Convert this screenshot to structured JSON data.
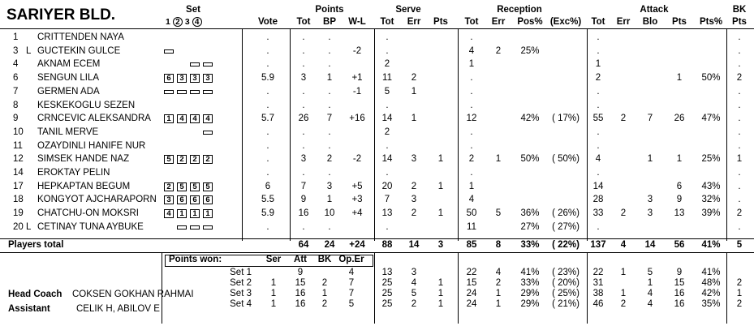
{
  "team": "SARIYER BLD.",
  "headers": {
    "set": "Set",
    "set_nums": [
      "1",
      "2",
      "3",
      "4"
    ],
    "vote": "Vote",
    "points": "Points",
    "serve": "Serve",
    "reception": "Reception",
    "attack": "Attack",
    "bk": "BK",
    "sub": {
      "p_tot": "Tot",
      "p_bp": "BP",
      "p_wl": "W-L",
      "s_tot": "Tot",
      "s_err": "Err",
      "s_pts": "Pts",
      "r_tot": "Tot",
      "r_err": "Err",
      "r_pos": "Pos%",
      "r_exc": "(Exc%)",
      "a_tot": "Tot",
      "a_err": "Err",
      "a_blo": "Blo",
      "a_pts": "Pts",
      "a_ptsp": "Pts%",
      "bk_pts": "Pts"
    }
  },
  "players": [
    {
      "num": "1",
      "role": "",
      "name": "CRITTENDEN NAYA",
      "sets": [],
      "vote": ".",
      "p_tot": ".",
      "p_bp": ".",
      "p_wl": "",
      "s_tot": ".",
      "s_err": "",
      "s_pts": "",
      "r_tot": ".",
      "r_err": "",
      "r_pos": "",
      "r_exc": "",
      "a_tot": ".",
      "a_err": "",
      "a_blo": "",
      "a_pts": "",
      "a_ptsp": "",
      "bk": "."
    },
    {
      "num": "3",
      "role": "L",
      "name": "GUCTEKIN GULCE",
      "sets": [
        "",
        "",
        "",
        ""
      ],
      "boxes": [
        0
      ],
      "vote": ".",
      "p_tot": ".",
      "p_bp": ".",
      "p_wl": "-2",
      "s_tot": ".",
      "s_err": "",
      "s_pts": "",
      "r_tot": "4",
      "r_err": "2",
      "r_pos": "25%",
      "r_exc": "",
      "a_tot": ".",
      "a_err": "",
      "a_blo": "",
      "a_pts": "",
      "a_ptsp": "",
      "bk": "."
    },
    {
      "num": "4",
      "role": "",
      "name": "AKNAM ECEM",
      "sets": [
        "",
        "",
        "",
        ""
      ],
      "boxes": [
        2,
        3
      ],
      "vote": ".",
      "p_tot": ".",
      "p_bp": ".",
      "p_wl": "",
      "s_tot": "2",
      "s_err": "",
      "s_pts": "",
      "r_tot": "1",
      "r_err": "",
      "r_pos": "",
      "r_exc": "",
      "a_tot": "1",
      "a_err": "",
      "a_blo": "",
      "a_pts": "",
      "a_ptsp": "",
      "bk": "."
    },
    {
      "num": "6",
      "role": "",
      "name": "SENGUN LILA",
      "sets": [
        "6",
        "3",
        "3",
        "3"
      ],
      "boxes": [
        0,
        1,
        2,
        3
      ],
      "vote": "5.9",
      "p_tot": "3",
      "p_bp": "1",
      "p_wl": "+1",
      "s_tot": "11",
      "s_err": "2",
      "s_pts": "",
      "r_tot": ".",
      "r_err": "",
      "r_pos": "",
      "r_exc": "",
      "a_tot": "2",
      "a_err": "",
      "a_blo": "",
      "a_pts": "1",
      "a_ptsp": "50%",
      "bk": "2"
    },
    {
      "num": "7",
      "role": "",
      "name": "GERMEN ADA",
      "sets": [
        "",
        "",
        "",
        ""
      ],
      "boxes": [
        0,
        1,
        2,
        3
      ],
      "vote": ".",
      "p_tot": ".",
      "p_bp": ".",
      "p_wl": "-1",
      "s_tot": "5",
      "s_err": "1",
      "s_pts": "",
      "r_tot": ".",
      "r_err": "",
      "r_pos": "",
      "r_exc": "",
      "a_tot": ".",
      "a_err": "",
      "a_blo": "",
      "a_pts": "",
      "a_ptsp": "",
      "bk": "."
    },
    {
      "num": "8",
      "role": "",
      "name": "KESKEKOGLU SEZEN",
      "sets": [],
      "vote": ".",
      "p_tot": ".",
      "p_bp": ".",
      "p_wl": "",
      "s_tot": ".",
      "s_err": "",
      "s_pts": "",
      "r_tot": ".",
      "r_err": "",
      "r_pos": "",
      "r_exc": "",
      "a_tot": ".",
      "a_err": "",
      "a_blo": "",
      "a_pts": "",
      "a_ptsp": "",
      "bk": "."
    },
    {
      "num": "9",
      "role": "",
      "name": "CRNCEVIC ALEKSANDRA",
      "sets": [
        "1",
        "4",
        "4",
        "4"
      ],
      "boxes": [
        0,
        1,
        2,
        3
      ],
      "vote": "5.7",
      "p_tot": "26",
      "p_bp": "7",
      "p_wl": "+16",
      "s_tot": "14",
      "s_err": "1",
      "s_pts": "",
      "r_tot": "12",
      "r_err": "",
      "r_pos": "42%",
      "r_exc": "( 17%)",
      "a_tot": "55",
      "a_err": "2",
      "a_blo": "7",
      "a_pts": "26",
      "a_ptsp": "47%",
      "bk": "."
    },
    {
      "num": "10",
      "role": "",
      "name": "TANIL MERVE",
      "sets": [
        "",
        "",
        "",
        ""
      ],
      "boxes": [
        3
      ],
      "vote": ".",
      "p_tot": ".",
      "p_bp": ".",
      "p_wl": "",
      "s_tot": "2",
      "s_err": "",
      "s_pts": "",
      "r_tot": ".",
      "r_err": "",
      "r_pos": "",
      "r_exc": "",
      "a_tot": ".",
      "a_err": "",
      "a_blo": "",
      "a_pts": "",
      "a_ptsp": "",
      "bk": "."
    },
    {
      "num": "11",
      "role": "",
      "name": "OZAYDINLI HANIFE NUR",
      "sets": [],
      "vote": ".",
      "p_tot": ".",
      "p_bp": ".",
      "p_wl": "",
      "s_tot": ".",
      "s_err": "",
      "s_pts": "",
      "r_tot": ".",
      "r_err": "",
      "r_pos": "",
      "r_exc": "",
      "a_tot": ".",
      "a_err": "",
      "a_blo": "",
      "a_pts": "",
      "a_ptsp": "",
      "bk": "."
    },
    {
      "num": "12",
      "role": "",
      "name": "SIMSEK HANDE NAZ",
      "sets": [
        "5",
        "2",
        "2",
        "2"
      ],
      "boxes": [
        0,
        1,
        2,
        3
      ],
      "vote": ".",
      "p_tot": "3",
      "p_bp": "2",
      "p_wl": "-2",
      "s_tot": "14",
      "s_err": "3",
      "s_pts": "1",
      "r_tot": "2",
      "r_err": "1",
      "r_pos": "50%",
      "r_exc": "( 50%)",
      "a_tot": "4",
      "a_err": "",
      "a_blo": "1",
      "a_pts": "1",
      "a_ptsp": "25%",
      "bk": "1"
    },
    {
      "num": "14",
      "role": "",
      "name": "EROKTAY PELIN",
      "sets": [],
      "vote": ".",
      "p_tot": ".",
      "p_bp": ".",
      "p_wl": "",
      "s_tot": ".",
      "s_err": "",
      "s_pts": "",
      "r_tot": ".",
      "r_err": "",
      "r_pos": "",
      "r_exc": "",
      "a_tot": ".",
      "a_err": "",
      "a_blo": "",
      "a_pts": "",
      "a_ptsp": "",
      "bk": "."
    },
    {
      "num": "17",
      "role": "",
      "name": "HEPKAPTAN BEGUM",
      "sets": [
        "2",
        "5",
        "5",
        "5"
      ],
      "boxes": [
        0,
        1,
        2,
        3
      ],
      "vote": "6",
      "p_tot": "7",
      "p_bp": "3",
      "p_wl": "+5",
      "s_tot": "20",
      "s_err": "2",
      "s_pts": "1",
      "r_tot": "1",
      "r_err": "",
      "r_pos": "",
      "r_exc": "",
      "a_tot": "14",
      "a_err": "",
      "a_blo": "",
      "a_pts": "6",
      "a_ptsp": "43%",
      "bk": "."
    },
    {
      "num": "18",
      "role": "",
      "name": "KONGYOT AJCHARAPORN",
      "sets": [
        "3",
        "6",
        "6",
        "6"
      ],
      "boxes": [
        0,
        1,
        2,
        3
      ],
      "vote": "5.5",
      "p_tot": "9",
      "p_bp": "1",
      "p_wl": "+3",
      "s_tot": "7",
      "s_err": "3",
      "s_pts": "",
      "r_tot": "4",
      "r_err": "",
      "r_pos": "",
      "r_exc": "",
      "a_tot": "28",
      "a_err": "",
      "a_blo": "3",
      "a_pts": "9",
      "a_ptsp": "32%",
      "bk": "."
    },
    {
      "num": "19",
      "role": "",
      "name": "CHATCHU-ON MOKSRI",
      "sets": [
        "4",
        "1",
        "1",
        "1"
      ],
      "boxes": [
        0,
        1,
        2,
        3
      ],
      "vote": "5.9",
      "p_tot": "16",
      "p_bp": "10",
      "p_wl": "+4",
      "s_tot": "13",
      "s_err": "2",
      "s_pts": "1",
      "r_tot": "50",
      "r_err": "5",
      "r_pos": "36%",
      "r_exc": "( 26%)",
      "a_tot": "33",
      "a_err": "2",
      "a_blo": "3",
      "a_pts": "13",
      "a_ptsp": "39%",
      "bk": "2"
    },
    {
      "num": "20",
      "role": "L",
      "name": "CETINAY TUNA AYBUKE",
      "sets": [
        "",
        "",
        "",
        ""
      ],
      "boxes": [
        1,
        2,
        3
      ],
      "vote": ".",
      "p_tot": ".",
      "p_bp": ".",
      "p_wl": "",
      "s_tot": ".",
      "s_err": "",
      "s_pts": "",
      "r_tot": "11",
      "r_err": "",
      "r_pos": "27%",
      "r_exc": "( 27%)",
      "a_tot": ".",
      "a_err": "",
      "a_blo": "",
      "a_pts": "",
      "a_ptsp": "",
      "bk": "."
    }
  ],
  "totals": {
    "label": "Players total",
    "p_tot": "64",
    "p_bp": "24",
    "p_wl": "+24",
    "s_tot": "88",
    "s_err": "14",
    "s_pts": "3",
    "r_tot": "85",
    "r_err": "8",
    "r_pos": "33%",
    "r_exc": "( 22%)",
    "a_tot": "137",
    "a_err": "4",
    "a_blo": "14",
    "a_pts": "56",
    "a_ptsp": "41%",
    "bk": "5"
  },
  "points_won": {
    "label": "Points won:",
    "headers": {
      "ser": "Ser",
      "att": "Att",
      "bk": "BK",
      "op": "Op.Er"
    },
    "sets": [
      {
        "label": "Set 1",
        "ser": "",
        "att": "9",
        "bk": "",
        "op": "4",
        "s_tot": "13",
        "s_err": "3",
        "s_pts": "",
        "r_tot": "22",
        "r_err": "4",
        "r_pos": "41%",
        "r_exc": "( 23%)",
        "a_tot": "22",
        "a_err": "1",
        "a_blo": "5",
        "a_pts": "9",
        "a_ptsp": "41%"
      },
      {
        "label": "Set 2",
        "ser": "1",
        "att": "15",
        "bk": "2",
        "op": "7",
        "s_tot": "25",
        "s_err": "4",
        "s_pts": "1",
        "r_tot": "15",
        "r_err": "2",
        "r_pos": "33%",
        "r_exc": "( 20%)",
        "a_tot": "31",
        "a_err": "",
        "a_blo": "1",
        "a_pts": "15",
        "a_ptsp": "48%"
      },
      {
        "label": "Set 3",
        "ser": "1",
        "att": "16",
        "bk": "1",
        "op": "7",
        "s_tot": "25",
        "s_err": "5",
        "s_pts": "1",
        "r_tot": "24",
        "r_err": "1",
        "r_pos": "29%",
        "r_exc": "( 25%)",
        "a_tot": "38",
        "a_err": "1",
        "a_blo": "4",
        "a_pts": "16",
        "a_ptsp": "42%"
      },
      {
        "label": "Set 4",
        "ser": "1",
        "att": "16",
        "bk": "2",
        "op": "5",
        "s_tot": "25",
        "s_err": "2",
        "s_pts": "1",
        "r_tot": "24",
        "r_err": "1",
        "r_pos": "29%",
        "r_exc": "( 21%)",
        "a_tot": "46",
        "a_err": "2",
        "a_blo": "4",
        "a_pts": "16",
        "a_ptsp": "35%"
      }
    ]
  },
  "staff": {
    "head_coach_label": "Head Coach",
    "head_coach": "COKSEN GOKHAN RAHMAI",
    "assistant_label": "Assistant",
    "assistant": "CELIK H, ABILOV E"
  }
}
